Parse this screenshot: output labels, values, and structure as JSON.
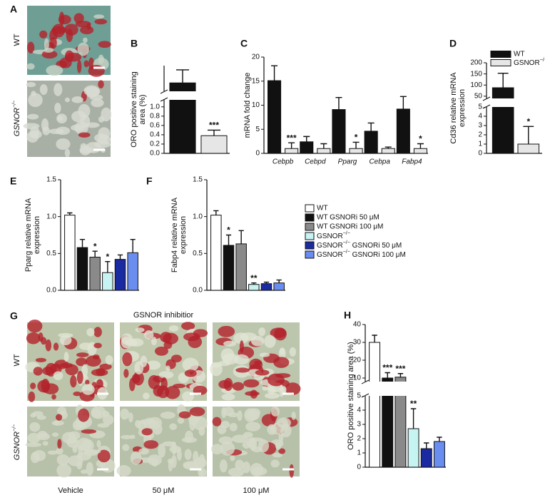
{
  "images": {
    "A": {
      "label": "A",
      "rows": [
        "WT",
        "GSNOR−/−"
      ]
    },
    "G": {
      "label": "G",
      "title": "GSNOR inhibitior",
      "rows": [
        "WT",
        "GSNOR−/−"
      ],
      "columns": [
        "Vehicle",
        "50 μM",
        "100 μM"
      ]
    }
  },
  "chart_data": [
    {
      "type": "bar",
      "panel": "B",
      "ylabel": [
        "ORO positive staining",
        "area (%)"
      ],
      "categories": [
        null,
        null
      ],
      "values": [
        8.3,
        0.38
      ],
      "errors": [
        2.8,
        0.12
      ],
      "colors": [
        "#111111",
        "#e6e6e6"
      ],
      "annotations": [
        null,
        "***"
      ],
      "y_segments": [
        {
          "ylim": [
            0,
            1.15
          ],
          "yticks": [
            {
              "value": 0,
              "label": "0.0"
            },
            0.2,
            0.4,
            0.6,
            0.8,
            {
              "value": 1,
              "label": "1.0"
            }
          ]
        },
        {
          "ylim": [
            6.5,
            12
          ]
        }
      ]
    },
    {
      "type": "bar",
      "panel": "C",
      "ylabel": [
        "mRNA fold change"
      ],
      "categories": [
        "Cebpb",
        "Cebpd",
        "Pparg",
        "Cebpa",
        "Fabp4"
      ],
      "ylim": [
        0,
        20
      ],
      "yticks": [
        0,
        5,
        10,
        15,
        20
      ],
      "series": [
        {
          "color": "#111111",
          "values": [
            15.1,
            2.4,
            9.1,
            4.6,
            9.2
          ],
          "errors": [
            3.1,
            1.1,
            2.5,
            1.7,
            2.6
          ]
        },
        {
          "color": "#e6e6e6",
          "values": [
            1.0,
            1.0,
            1.0,
            1.0,
            1.0
          ],
          "errors": [
            1.2,
            1.0,
            1.3,
            0.3,
            1.0
          ],
          "annotations": [
            "***",
            null,
            "*",
            null,
            "*"
          ]
        }
      ]
    },
    {
      "type": "bar",
      "panel": "D",
      "ylabel": [
        "Cd36 relative mRNA",
        "expression"
      ],
      "categories": [
        null
      ],
      "series": [
        {
          "name": "WT",
          "color": "#111111",
          "values": [
            88
          ],
          "errors": [
            65
          ]
        },
        {
          "name": "GSNOR−/−",
          "color": "#e6e6e6",
          "values": [
            1.0
          ],
          "errors": [
            1.9
          ],
          "annotations": [
            "*"
          ]
        }
      ],
      "legend_position": "top",
      "y_segments": [
        {
          "ylim": [
            0,
            5
          ],
          "yticks": [
            0,
            1,
            2,
            3,
            4,
            5
          ]
        },
        {
          "ylim": [
            40,
            200
          ],
          "yticks": [
            50,
            100,
            150,
            200
          ]
        }
      ]
    },
    {
      "type": "bar",
      "panel": "E",
      "ylabel": [
        "Pparg relative mRNA",
        "expression"
      ],
      "categories": [
        null,
        null,
        null,
        null,
        null,
        null
      ],
      "values": [
        1.02,
        0.58,
        0.45,
        0.24,
        0.42,
        0.51
      ],
      "errors": [
        0.03,
        0.11,
        0.08,
        0.15,
        0.06,
        0.18
      ],
      "annotations": [
        null,
        null,
        "*",
        "*",
        null,
        null
      ],
      "colors": [
        "#ffffff",
        "#111111",
        "#8a8a8a",
        "#c8f3f3",
        "#1a2aa0",
        "#6a8ef0"
      ],
      "ylim": [
        0,
        1.5
      ],
      "yticks": [
        {
          "value": 0,
          "label": "0.0"
        },
        0.5,
        {
          "value": 1,
          "label": "1.0"
        },
        1.5
      ]
    },
    {
      "type": "bar",
      "panel": "F",
      "ylabel": [
        "Fabp4 relative mRNA",
        "expression"
      ],
      "categories": [
        null,
        null,
        null,
        null,
        null,
        null
      ],
      "values": [
        1.02,
        0.61,
        0.63,
        0.08,
        0.09,
        0.1
      ],
      "errors": [
        0.06,
        0.14,
        0.18,
        0.02,
        0.02,
        0.04
      ],
      "annotations": [
        null,
        "*",
        null,
        "**",
        null,
        null
      ],
      "colors": [
        "#ffffff",
        "#111111",
        "#8a8a8a",
        "#c8f3f3",
        "#1a2aa0",
        "#6a8ef0"
      ],
      "ylim": [
        0,
        1.5
      ],
      "yticks": [
        {
          "value": 0,
          "label": "0.0"
        },
        0.5,
        {
          "value": 1,
          "label": "1.0"
        },
        1.5
      ],
      "legend": [
        {
          "name": "WT",
          "color": "#ffffff"
        },
        {
          "name": "WT GSNORi 50 μM",
          "color": "#111111"
        },
        {
          "name": "WT GSNORi 100 μM",
          "color": "#8a8a8a"
        },
        {
          "name": "GSNOR−/−",
          "color": "#c8f3f3"
        },
        {
          "name": "GSNOR−/− GSNORi 50 μM",
          "color": "#1a2aa0"
        },
        {
          "name": "GSNOR−/− GSNORi 100 μM",
          "color": "#6a8ef0"
        }
      ]
    },
    {
      "type": "bar",
      "panel": "H",
      "ylabel": [
        "ORO positive staining area (%)"
      ],
      "categories": [
        null,
        null,
        null,
        null,
        null,
        null
      ],
      "values": [
        30,
        10,
        10.5,
        2.7,
        1.3,
        1.8
      ],
      "errors": [
        4,
        3,
        2,
        1.4,
        0.4,
        0.3
      ],
      "annotations": [
        null,
        "***",
        "***",
        "**",
        null,
        null
      ],
      "colors": [
        "#ffffff",
        "#111111",
        "#8a8a8a",
        "#c8f3f3",
        "#1a2aa0",
        "#6a8ef0"
      ],
      "y_segments": [
        {
          "ylim": [
            0,
            5
          ],
          "yticks": [
            0,
            1,
            2,
            3,
            4,
            5
          ]
        },
        {
          "ylim": [
            8,
            40
          ],
          "yticks": [
            10,
            20,
            30,
            40
          ]
        }
      ]
    }
  ]
}
